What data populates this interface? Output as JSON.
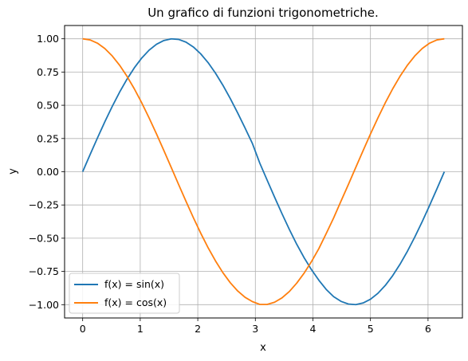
{
  "chart_data": {
    "type": "line",
    "title": "Un grafico di funzioni trigonometriche.",
    "xlabel": "x",
    "ylabel": "y",
    "xlim": [
      -0.3142,
      6.5973
    ],
    "ylim": [
      -1.1,
      1.1
    ],
    "xticks": [
      0,
      1,
      2,
      3,
      4,
      5,
      6
    ],
    "xtick_labels": [
      "0",
      "1",
      "2",
      "3",
      "4",
      "5",
      "6"
    ],
    "yticks": [
      1.0,
      0.75,
      0.5,
      0.25,
      0.0,
      -0.25,
      -0.5,
      -0.75,
      -1.0
    ],
    "ytick_labels": [
      "1.00",
      "0.75",
      "0.50",
      "0.25",
      "0.00",
      "−0.25",
      "−0.50",
      "−0.75",
      "−1.00"
    ],
    "grid": true,
    "legend_position": "lower-left",
    "x": [
      0.0,
      0.1282,
      0.2565,
      0.3847,
      0.5129,
      0.6411,
      0.7694,
      0.8976,
      1.0258,
      1.1541,
      1.2823,
      1.4105,
      1.5387,
      1.667,
      1.7952,
      1.9234,
      2.0517,
      2.1799,
      2.3081,
      2.4363,
      2.5646,
      2.6928,
      2.821,
      2.9493,
      3.0775,
      3.2057,
      3.3339,
      3.4622,
      3.5904,
      3.7186,
      3.8468,
      3.9751,
      4.1033,
      4.2315,
      4.3598,
      4.488,
      4.6162,
      4.7444,
      4.8727,
      5.0009,
      5.1291,
      5.2574,
      5.3856,
      5.5138,
      5.642,
      5.7703,
      5.8985,
      6.0267,
      6.155,
      6.2832
    ],
    "series": [
      {
        "name": "f(x) = sin(x)",
        "color": "#1f77b4",
        "values": [
          0.0,
          0.1279,
          0.2537,
          0.3753,
          0.4907,
          0.598,
          0.6956,
          0.7818,
          0.8551,
          0.9145,
          0.9587,
          0.9872,
          0.9995,
          0.9954,
          0.9749,
          0.9383,
          0.8865,
          0.8203,
          0.7412,
          0.6506,
          0.5503,
          0.4423,
          0.3288,
          0.2118,
          0.0641,
          -0.0641,
          -0.1912,
          -0.3151,
          -0.4339,
          -0.5453,
          -0.6466,
          -0.7368,
          -0.8163,
          -0.8855,
          -0.9395,
          -0.9752,
          -0.9953,
          -0.9995,
          -0.9872,
          -0.9587,
          -0.9145,
          -0.8551,
          -0.7818,
          -0.6956,
          -0.598,
          -0.4907,
          -0.3753,
          -0.2537,
          -0.1279,
          0.0
        ]
      },
      {
        "name": "f(x) = cos(x)",
        "color": "#ff7f0e",
        "values": [
          1.0,
          0.9918,
          0.9673,
          0.9269,
          0.8713,
          0.8016,
          0.7183,
          0.6235,
          0.5187,
          0.4047,
          0.2845,
          0.1596,
          0.0321,
          -0.0962,
          -0.2225,
          -0.3458,
          -0.4627,
          -0.5723,
          -0.6713,
          -0.7594,
          -0.8351,
          -0.8969,
          -0.9444,
          -0.9773,
          -0.9979,
          -0.9979,
          -0.9815,
          -0.9491,
          -0.9009,
          -0.8382,
          -0.7632,
          -0.6761,
          -0.578,
          -0.4647,
          -0.3475,
          -0.2209,
          -0.0962,
          0.0321,
          0.1596,
          0.2845,
          0.4047,
          0.5187,
          0.6235,
          0.7183,
          0.8016,
          0.8713,
          0.9269,
          0.9673,
          0.9918,
          1.0
        ]
      }
    ]
  }
}
